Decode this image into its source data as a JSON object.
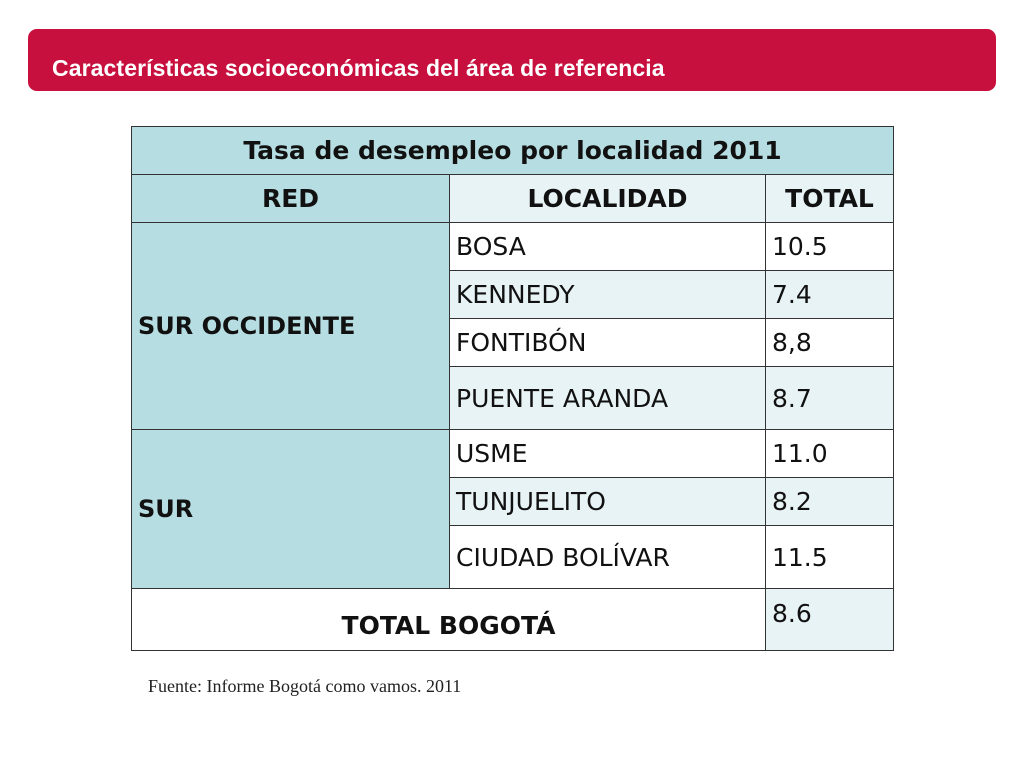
{
  "slide": {
    "banner_title": "Características socioeconómicas del área de referencia",
    "accent_color": "#c8103e",
    "table_fill_color": "#b6dde1"
  },
  "table": {
    "title": "Tasa de desempleo por localidad 2011",
    "headers": [
      "RED",
      "LOCALIDAD",
      "TOTAL"
    ],
    "groups": [
      {
        "red": "SUR OCCIDENTE",
        "rows": [
          {
            "localidad": "BOSA",
            "total": "10.5"
          },
          {
            "localidad": "KENNEDY",
            "total": "7.4"
          },
          {
            "localidad": "FONTIBÓN",
            "total": "8,8"
          },
          {
            "localidad": "PUENTE ARANDA",
            "total": "8.7"
          }
        ]
      },
      {
        "red": "SUR",
        "rows": [
          {
            "localidad": "USME",
            "total": "11.0"
          },
          {
            "localidad": "TUNJUELITO",
            "total": "8.2"
          },
          {
            "localidad": "CIUDAD BOLÍVAR",
            "total": "11.5"
          }
        ]
      }
    ],
    "total_label": "TOTAL BOGOTÁ",
    "total_value": "8.6"
  },
  "source": "Fuente: Informe Bogotá como vamos. 2011"
}
